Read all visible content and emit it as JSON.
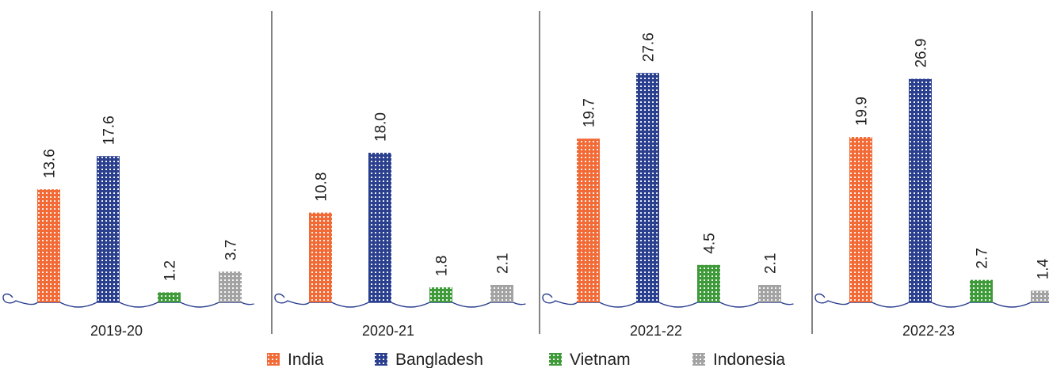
{
  "chart_data": {
    "type": "bar",
    "categories": [
      "2019-20",
      "2020-21",
      "2021-22",
      "2022-23"
    ],
    "series": [
      {
        "name": "India",
        "color": "#f26a35",
        "values": [
          13.6,
          10.8,
          19.7,
          19.9
        ]
      },
      {
        "name": "Bangladesh",
        "color": "#2b3f8f",
        "values": [
          17.6,
          18.0,
          27.6,
          26.9
        ]
      },
      {
        "name": "Vietnam",
        "color": "#3f9a3a",
        "values": [
          1.2,
          1.8,
          4.5,
          2.7
        ]
      },
      {
        "name": "Indonesia",
        "color": "#a3a3a3",
        "values": [
          3.7,
          2.1,
          2.1,
          1.4
        ]
      }
    ],
    "value_labels": [
      [
        "13.6",
        "17.6",
        "1.2",
        "3.7"
      ],
      [
        "10.8",
        "18.0",
        "1.8",
        "2.1"
      ],
      [
        "19.7",
        "27.6",
        "4.5",
        "2.1"
      ],
      [
        "19.9",
        "26.9",
        "2.7",
        "1.4"
      ]
    ],
    "title": "",
    "xlabel": "",
    "ylabel": "",
    "grid": false,
    "legend_position": "bottom-center",
    "thread_color": "#2b3f8f"
  }
}
